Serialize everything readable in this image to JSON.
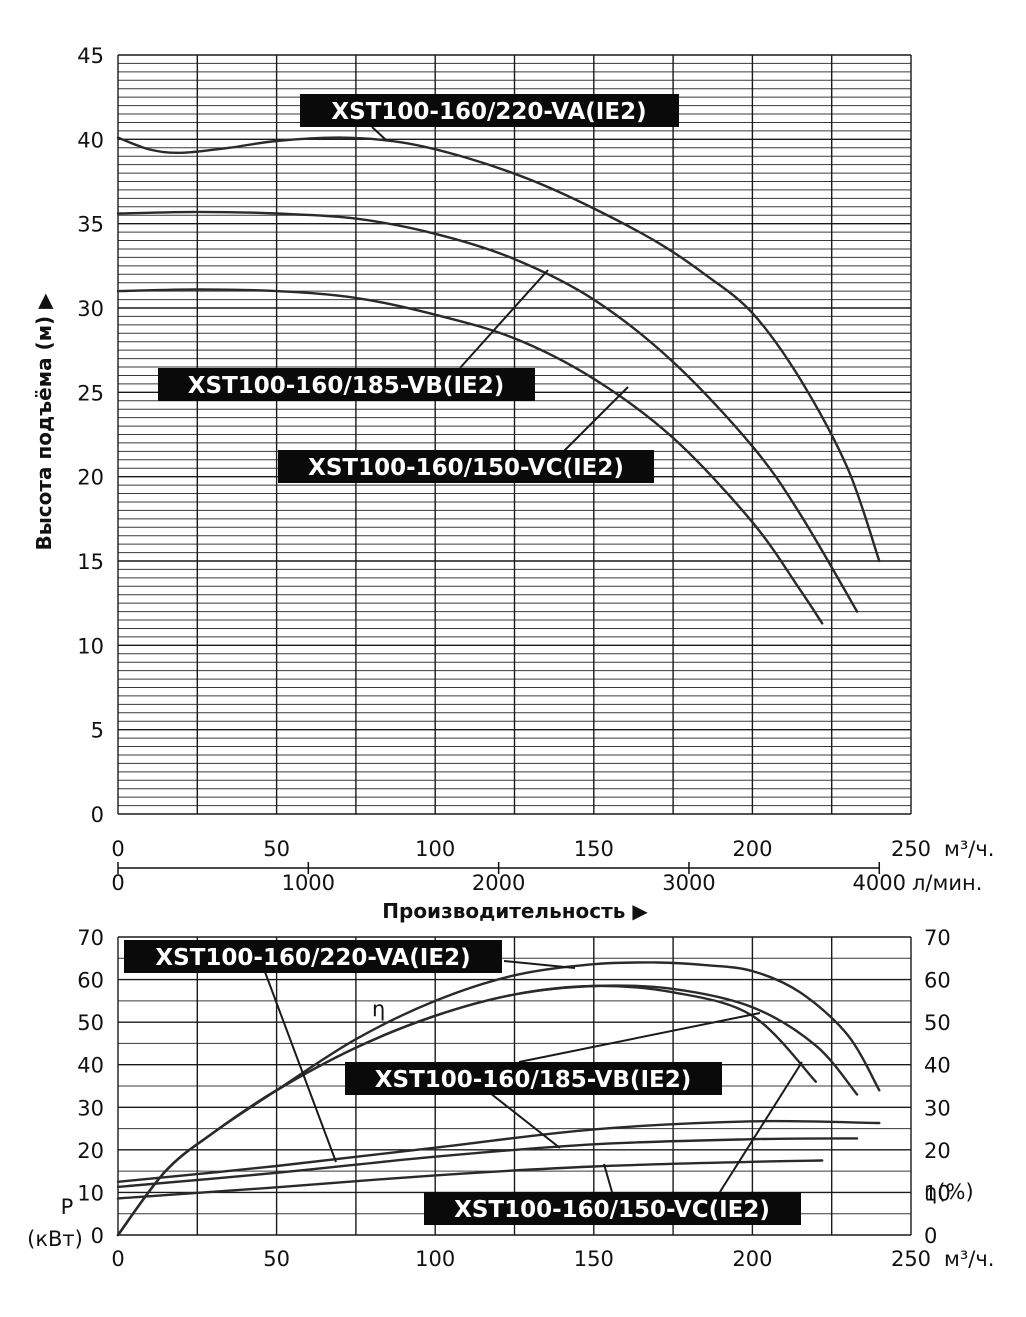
{
  "chart_data": [
    {
      "type": "line",
      "title": "",
      "ylabel": "Высота подъёма (м) ▶",
      "xlabel": "Производительность ▶",
      "xunit": "м³/ч.",
      "x2unit": "л/мин.",
      "xlim": [
        0,
        250
      ],
      "ylim": [
        0,
        45
      ],
      "xticks": [
        "0",
        "50",
        "100",
        "150",
        "200",
        "250"
      ],
      "x2ticks": [
        "0",
        "1000",
        "2000",
        "3000",
        "4000"
      ],
      "yticks": [
        "0",
        "5",
        "10",
        "15",
        "20",
        "25",
        "30",
        "35",
        "40",
        "45"
      ],
      "grid": true,
      "series": [
        {
          "name": "XST100-160/220-VA(IE2)",
          "x": [
            0,
            10,
            20,
            35,
            50,
            70,
            90,
            110,
            130,
            150,
            170,
            185,
            200,
            215,
            230,
            240
          ],
          "y": [
            40.1,
            39.4,
            39.2,
            39.5,
            39.9,
            40.1,
            39.8,
            38.9,
            37.6,
            35.9,
            33.9,
            32.0,
            29.7,
            25.8,
            20.5,
            15.0
          ]
        },
        {
          "name": "XST100-160/185-VB(IE2)",
          "x": [
            0,
            25,
            50,
            75,
            100,
            125,
            150,
            175,
            200,
            215,
            233
          ],
          "y": [
            35.6,
            35.7,
            35.6,
            35.3,
            34.4,
            32.9,
            30.5,
            26.8,
            21.8,
            17.8,
            12.0
          ]
        },
        {
          "name": "XST100-160/150-VC(IE2)",
          "x": [
            0,
            25,
            50,
            75,
            100,
            125,
            150,
            175,
            200,
            215,
            222
          ],
          "y": [
            31.0,
            31.1,
            31.0,
            30.6,
            29.6,
            28.2,
            25.8,
            22.3,
            17.3,
            13.3,
            11.3
          ]
        }
      ]
    },
    {
      "type": "line",
      "title": "",
      "ylabel_left": "P (кВт)",
      "ylabel_right": "η(%)",
      "eta_label": "η",
      "xunit": "м³/ч.",
      "xlim": [
        0,
        250
      ],
      "ylim": [
        0,
        70
      ],
      "xticks": [
        "0",
        "50",
        "100",
        "150",
        "200",
        "250"
      ],
      "yticks": [
        "0",
        "10",
        "20",
        "30",
        "40",
        "50",
        "60",
        "70"
      ],
      "y2ticks": [
        "0",
        "10",
        "20",
        "30",
        "40",
        "50",
        "60",
        "70"
      ],
      "grid": true,
      "series": [
        {
          "name": "XST100-160/220-VA(IE2) η",
          "x": [
            0,
            15,
            30,
            50,
            75,
            100,
            125,
            150,
            170,
            185,
            200,
            215,
            230,
            240
          ],
          "y": [
            0,
            15,
            24,
            34,
            46,
            55,
            61,
            63.6,
            64.0,
            63.4,
            62.0,
            57.0,
            47.0,
            34.0
          ]
        },
        {
          "name": "XST100-160/185-VB(IE2) η",
          "x": [
            0,
            15,
            30,
            50,
            75,
            100,
            125,
            150,
            175,
            200,
            220,
            233
          ],
          "y": [
            0,
            15,
            24,
            34,
            44,
            51.5,
            56.5,
            58.5,
            57.8,
            53.5,
            44.5,
            33.0
          ]
        },
        {
          "name": "XST100-160/150-VC(IE2) η",
          "x": [
            0,
            15,
            30,
            50,
            75,
            100,
            125,
            150,
            175,
            200,
            220
          ],
          "y": [
            0,
            15,
            24,
            34,
            44,
            51.5,
            56.5,
            58.5,
            57.0,
            51.5,
            36.0
          ]
        },
        {
          "name": "XST100-160/220-VA(IE2) P",
          "x": [
            0,
            50,
            100,
            150,
            200,
            240
          ],
          "y": [
            12.5,
            16.2,
            20.5,
            24.8,
            26.7,
            26.3
          ]
        },
        {
          "name": "XST100-160/185-VB(IE2) P",
          "x": [
            0,
            50,
            100,
            150,
            200,
            233
          ],
          "y": [
            11.3,
            14.6,
            18.4,
            21.3,
            22.5,
            22.7
          ]
        },
        {
          "name": "XST100-160/150-VC(IE2) P",
          "x": [
            0,
            50,
            100,
            150,
            200,
            222
          ],
          "y": [
            8.6,
            11.2,
            14.0,
            16.1,
            17.2,
            17.5
          ]
        }
      ]
    }
  ],
  "labels": {
    "top_va": "XST100-160/220-VA(IE2)",
    "top_vb": "XST100-160/185-VB(IE2)",
    "top_vc": "XST100-160/150-VC(IE2)",
    "bot_va": "XST100-160/220-VA(IE2)",
    "bot_vb": "XST100-160/185-VB(IE2)",
    "bot_vc": "XST100-160/150-VC(IE2)"
  }
}
